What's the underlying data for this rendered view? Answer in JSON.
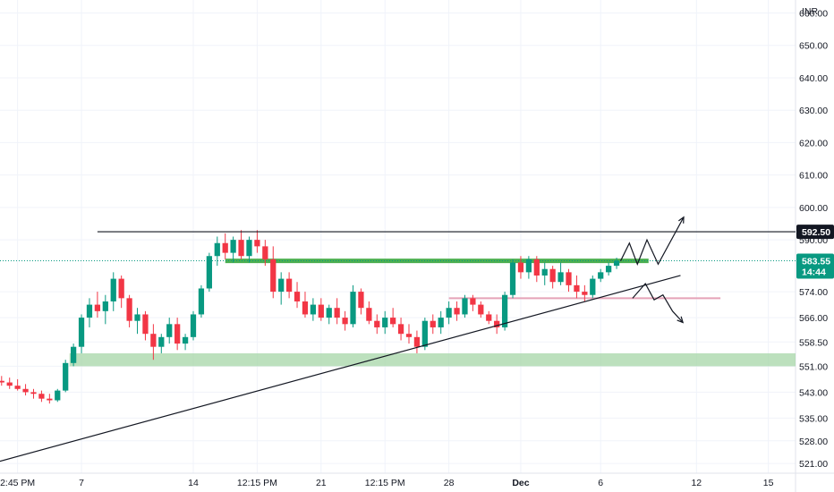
{
  "chart_data": {
    "type": "candlestick",
    "currency": "INR",
    "ylim": [
      518,
      664
    ],
    "y_ticks": [
      521,
      528,
      535,
      543,
      551,
      558.5,
      566,
      574,
      590,
      600,
      610,
      620,
      630,
      640,
      650,
      660
    ],
    "y_tick_labels": [
      "521.00",
      "528.00",
      "535.00",
      "543.00",
      "551.00",
      "558.50",
      "566.00",
      "574.00",
      "590.00",
      "600.00",
      "610.00",
      "620.00",
      "630.00",
      "640.00",
      "650.00",
      "660.00"
    ],
    "x_ticks": [
      {
        "label": "2:45 PM",
        "bar": 2,
        "bold": false
      },
      {
        "label": "7",
        "bar": 10,
        "bold": false
      },
      {
        "label": "14",
        "bar": 24,
        "bold": false
      },
      {
        "label": "12:15 PM",
        "bar": 32,
        "bold": false
      },
      {
        "label": "21",
        "bar": 40,
        "bold": false
      },
      {
        "label": "12:15 PM",
        "bar": 48,
        "bold": false
      },
      {
        "label": "28",
        "bar": 56,
        "bold": false
      },
      {
        "label": "Dec",
        "bar": 65,
        "bold": true
      },
      {
        "label": "6",
        "bar": 75,
        "bold": false
      },
      {
        "label": "12",
        "bar": 87,
        "bold": false
      },
      {
        "label": "15",
        "bar": 96,
        "bold": false
      }
    ],
    "bars_visible": 78,
    "bar_range": [
      -0.2,
      99.4
    ],
    "candles": [
      {
        "o": 546.5,
        "h": 548,
        "l": 545,
        "c": 546
      },
      {
        "o": 546,
        "h": 547.5,
        "l": 544,
        "c": 545
      },
      {
        "o": 545,
        "h": 547,
        "l": 543.5,
        "c": 544
      },
      {
        "o": 544,
        "h": 545.5,
        "l": 542,
        "c": 543
      },
      {
        "o": 543,
        "h": 544,
        "l": 541,
        "c": 542.5
      },
      {
        "o": 542.5,
        "h": 543.5,
        "l": 540,
        "c": 541
      },
      {
        "o": 541,
        "h": 542.5,
        "l": 539.5,
        "c": 540.5
      },
      {
        "o": 540.5,
        "h": 544,
        "l": 540,
        "c": 543.5
      },
      {
        "o": 543.5,
        "h": 553,
        "l": 543,
        "c": 552
      },
      {
        "o": 552,
        "h": 558,
        "l": 551,
        "c": 557
      },
      {
        "o": 557,
        "h": 567,
        "l": 555,
        "c": 566
      },
      {
        "o": 566,
        "h": 572,
        "l": 563,
        "c": 570
      },
      {
        "o": 570,
        "h": 574,
        "l": 566,
        "c": 568
      },
      {
        "o": 568,
        "h": 573,
        "l": 564,
        "c": 571
      },
      {
        "o": 571,
        "h": 580,
        "l": 568,
        "c": 578
      },
      {
        "o": 578,
        "h": 579,
        "l": 569,
        "c": 572
      },
      {
        "o": 572,
        "h": 573,
        "l": 563,
        "c": 565
      },
      {
        "o": 565,
        "h": 569,
        "l": 561,
        "c": 567
      },
      {
        "o": 567,
        "h": 568,
        "l": 559,
        "c": 561
      },
      {
        "o": 561,
        "h": 564,
        "l": 553,
        "c": 557
      },
      {
        "o": 557,
        "h": 561,
        "l": 555,
        "c": 560
      },
      {
        "o": 560,
        "h": 566,
        "l": 558,
        "c": 564
      },
      {
        "o": 564,
        "h": 566,
        "l": 556,
        "c": 558
      },
      {
        "o": 558,
        "h": 561,
        "l": 556,
        "c": 560
      },
      {
        "o": 560,
        "h": 568,
        "l": 559,
        "c": 567
      },
      {
        "o": 567,
        "h": 576,
        "l": 566,
        "c": 575
      },
      {
        "o": 575,
        "h": 586,
        "l": 574,
        "c": 585
      },
      {
        "o": 585,
        "h": 591,
        "l": 582,
        "c": 589
      },
      {
        "o": 589,
        "h": 592,
        "l": 584,
        "c": 586
      },
      {
        "o": 586,
        "h": 591,
        "l": 583,
        "c": 590
      },
      {
        "o": 590,
        "h": 593,
        "l": 584,
        "c": 585
      },
      {
        "o": 585,
        "h": 591,
        "l": 583,
        "c": 590
      },
      {
        "o": 590,
        "h": 593,
        "l": 586,
        "c": 588
      },
      {
        "o": 588,
        "h": 590,
        "l": 582,
        "c": 584
      },
      {
        "o": 584,
        "h": 588,
        "l": 572,
        "c": 574
      },
      {
        "o": 574,
        "h": 580,
        "l": 570,
        "c": 578
      },
      {
        "o": 578,
        "h": 580,
        "l": 572,
        "c": 574
      },
      {
        "o": 574,
        "h": 577,
        "l": 569,
        "c": 571
      },
      {
        "o": 571,
        "h": 574,
        "l": 566,
        "c": 567
      },
      {
        "o": 567,
        "h": 572,
        "l": 565,
        "c": 570
      },
      {
        "o": 570,
        "h": 572,
        "l": 565,
        "c": 566
      },
      {
        "o": 566,
        "h": 570,
        "l": 564,
        "c": 569
      },
      {
        "o": 569,
        "h": 572,
        "l": 564,
        "c": 566
      },
      {
        "o": 566,
        "h": 568,
        "l": 562,
        "c": 564
      },
      {
        "o": 564,
        "h": 576,
        "l": 563,
        "c": 574
      },
      {
        "o": 574,
        "h": 575,
        "l": 567,
        "c": 569
      },
      {
        "o": 569,
        "h": 571,
        "l": 564,
        "c": 565
      },
      {
        "o": 565,
        "h": 567,
        "l": 561,
        "c": 563
      },
      {
        "o": 563,
        "h": 568,
        "l": 561,
        "c": 566
      },
      {
        "o": 566,
        "h": 569,
        "l": 563,
        "c": 564
      },
      {
        "o": 564,
        "h": 566,
        "l": 559,
        "c": 561
      },
      {
        "o": 561,
        "h": 564,
        "l": 558,
        "c": 560
      },
      {
        "o": 560,
        "h": 562,
        "l": 555,
        "c": 557
      },
      {
        "o": 557,
        "h": 566,
        "l": 556,
        "c": 565
      },
      {
        "o": 565,
        "h": 567,
        "l": 561,
        "c": 563
      },
      {
        "o": 563,
        "h": 568,
        "l": 561,
        "c": 566
      },
      {
        "o": 566,
        "h": 571,
        "l": 564,
        "c": 569
      },
      {
        "o": 569,
        "h": 571,
        "l": 565,
        "c": 567
      },
      {
        "o": 567,
        "h": 573,
        "l": 566,
        "c": 572
      },
      {
        "o": 572,
        "h": 573,
        "l": 568,
        "c": 570
      },
      {
        "o": 570,
        "h": 571,
        "l": 566,
        "c": 567
      },
      {
        "o": 567,
        "h": 568,
        "l": 564,
        "c": 565
      },
      {
        "o": 565,
        "h": 567,
        "l": 561,
        "c": 563
      },
      {
        "o": 563,
        "h": 574,
        "l": 562,
        "c": 573
      },
      {
        "o": 573,
        "h": 584,
        "l": 572,
        "c": 583
      },
      {
        "o": 583,
        "h": 585,
        "l": 578,
        "c": 580
      },
      {
        "o": 580,
        "h": 585,
        "l": 578,
        "c": 584
      },
      {
        "o": 584,
        "h": 585,
        "l": 577,
        "c": 579
      },
      {
        "o": 579,
        "h": 583,
        "l": 576,
        "c": 581
      },
      {
        "o": 581,
        "h": 582,
        "l": 575,
        "c": 577
      },
      {
        "o": 577,
        "h": 583,
        "l": 576,
        "c": 580
      },
      {
        "o": 580,
        "h": 581,
        "l": 574,
        "c": 576
      },
      {
        "o": 576,
        "h": 579,
        "l": 572,
        "c": 574
      },
      {
        "o": 574,
        "h": 576,
        "l": 571,
        "c": 573
      },
      {
        "o": 573,
        "h": 579,
        "l": 572,
        "c": 578
      },
      {
        "o": 578,
        "h": 581,
        "l": 577,
        "c": 580
      },
      {
        "o": 580,
        "h": 583,
        "l": 579,
        "c": 582
      },
      {
        "o": 582,
        "h": 584.5,
        "l": 581,
        "c": 583.55
      }
    ],
    "last_price": {
      "value": 583.55,
      "label": "583.55",
      "countdown": "14:44",
      "color": "#089981"
    },
    "colors": {
      "up": "#089981",
      "down": "#f23645",
      "grid": "#f0f3fa",
      "drawing": "#131722"
    },
    "annotations": {
      "resistance_line": {
        "y": 592.5,
        "x_from_bar": 12,
        "label": "592.50",
        "color": "#131722"
      },
      "green_level": {
        "y": 583.5,
        "x_from_bar": 28,
        "x_to_bar": 81,
        "color": "#4caf50"
      },
      "pink_level": {
        "y": 572,
        "x_from_bar": 56,
        "x_to_bar": 90,
        "color": "#e5a3b8"
      },
      "support_zone": {
        "y_from": 551,
        "y_to": 555,
        "x_from_bar": 8.5,
        "color": "#a5d6a7"
      },
      "trendline": {
        "points": [
          [
            -0.5,
            521.5
          ],
          [
            85,
            579
          ]
        ],
        "color": "#131722"
      },
      "bull_path": {
        "points": [
          [
            77.5,
            583.5
          ],
          [
            78.6,
            589
          ],
          [
            79.6,
            582.5
          ],
          [
            80.8,
            590
          ],
          [
            82.2,
            582.5
          ],
          [
            85.4,
            597
          ]
        ],
        "color": "#131722"
      },
      "bear_path": {
        "points": [
          [
            79,
            572
          ],
          [
            80.6,
            576.5
          ],
          [
            81.7,
            571.5
          ],
          [
            82.8,
            573
          ],
          [
            84,
            568
          ],
          [
            85.3,
            564.5
          ]
        ],
        "color": "#131722"
      }
    }
  }
}
